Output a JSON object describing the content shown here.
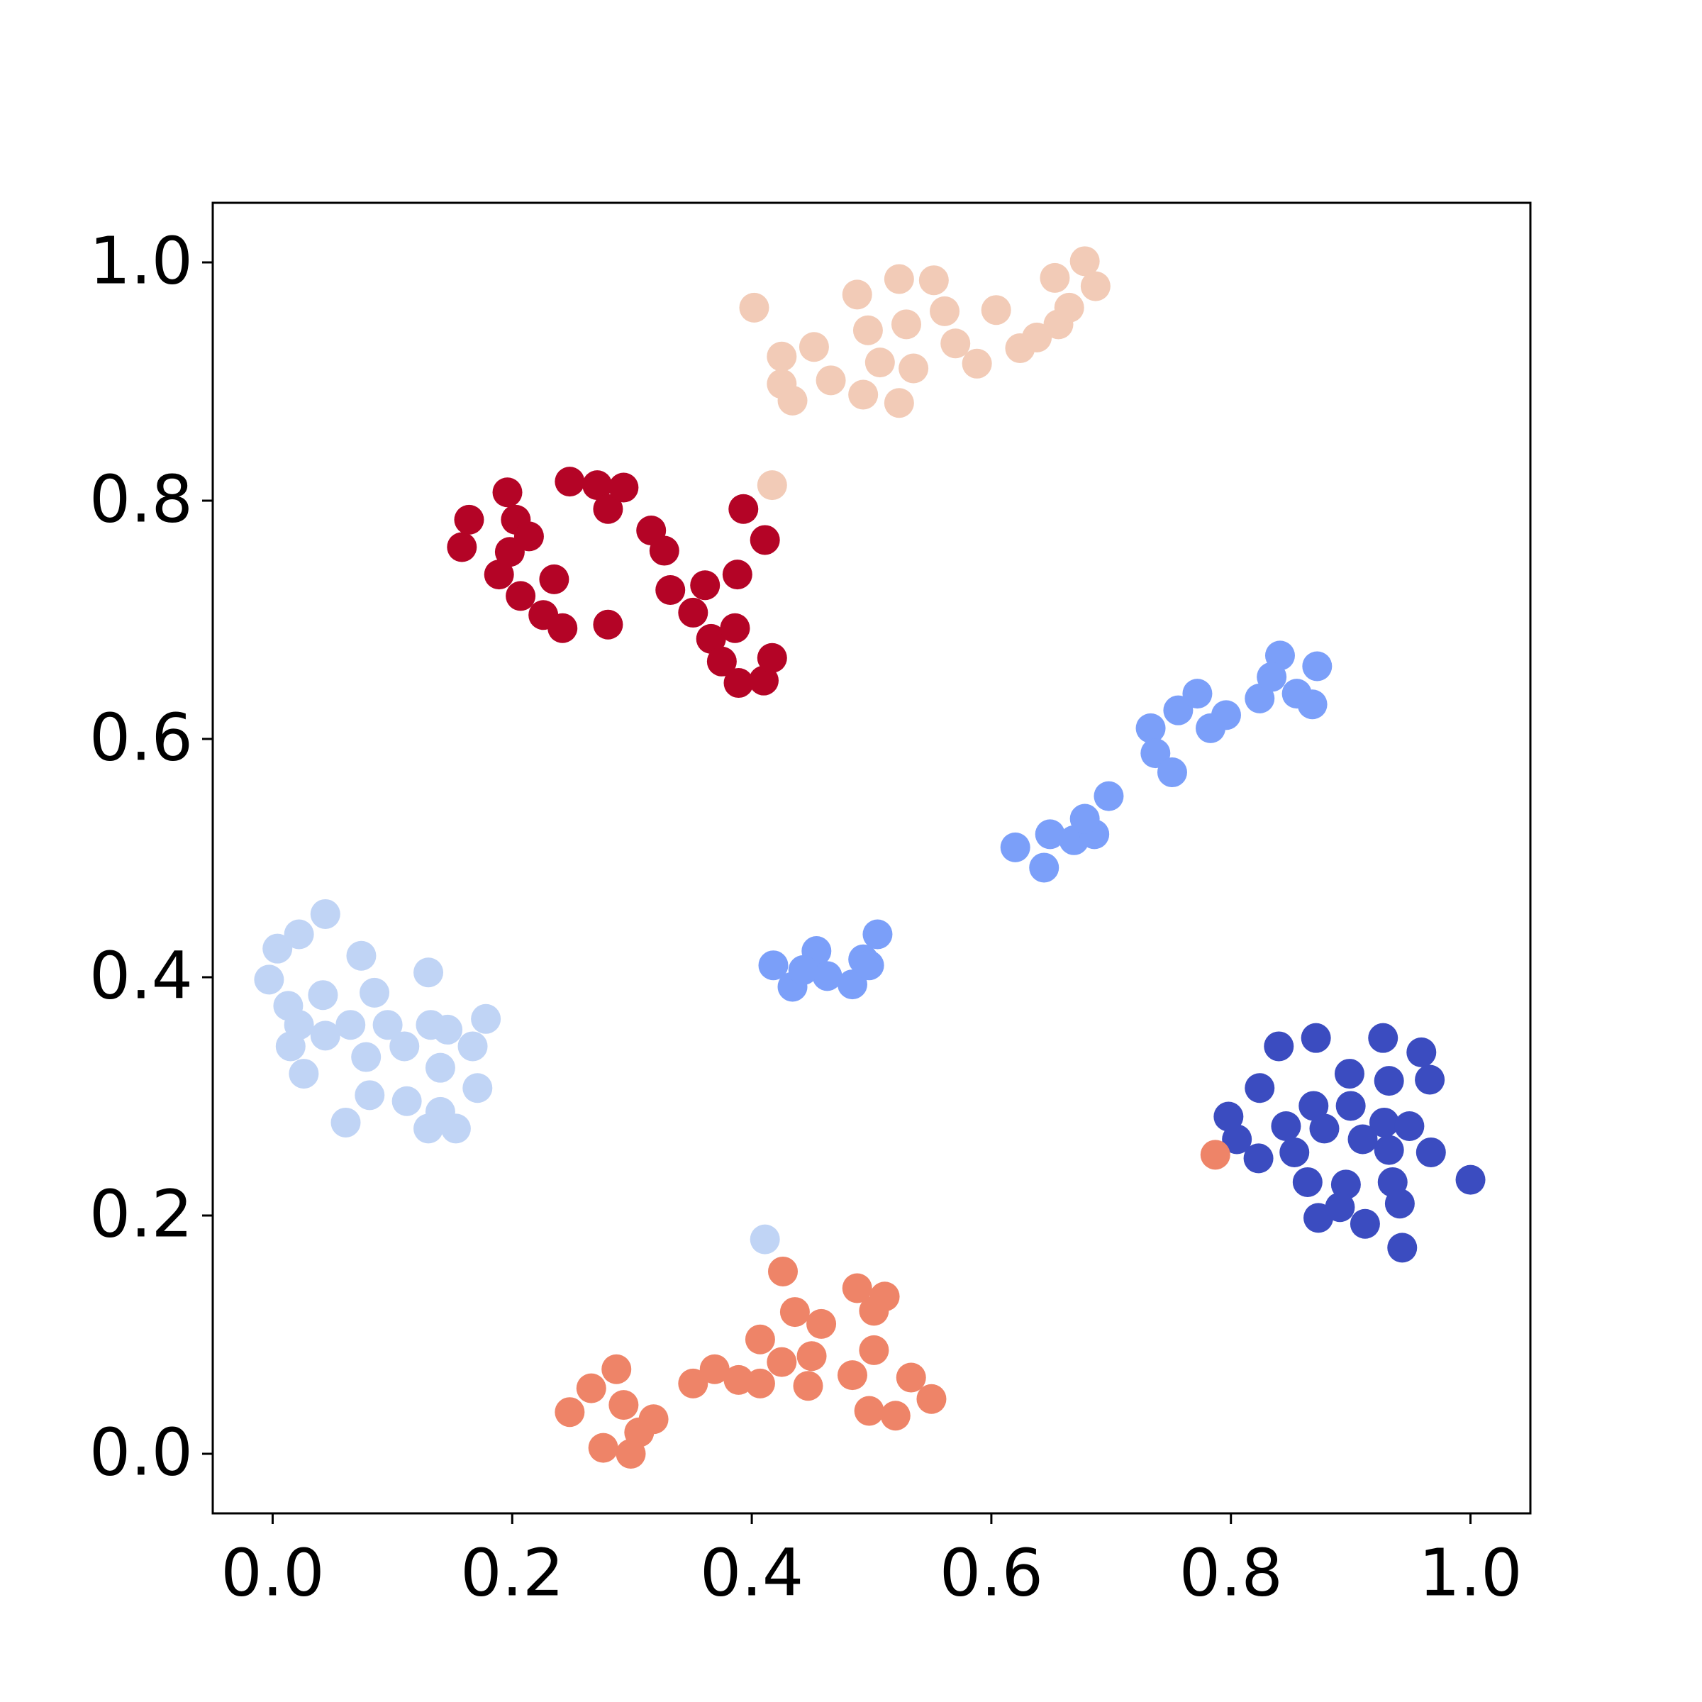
{
  "chart_data": {
    "type": "scatter",
    "xlim": [
      -0.05,
      1.05
    ],
    "ylim": [
      -0.05,
      1.05
    ],
    "xticks": [
      {
        "value": 0,
        "label": "0.0"
      },
      0.2,
      0.4,
      0.6,
      0.8,
      {
        "value": 1,
        "label": "1.0"
      }
    ],
    "yticks": [
      {
        "value": 0,
        "label": "0.0"
      },
      0.2,
      0.4,
      0.6,
      0.8,
      {
        "value": 1,
        "label": "1.0"
      }
    ],
    "grid": false,
    "series": [
      {
        "color": "#3b4cc0",
        "x": [
          0.871,
          0.927,
          0.84,
          0.959,
          0.899,
          0.824,
          0.966,
          0.932,
          0.869,
          0.9,
          0.798,
          0.846,
          0.878,
          0.928,
          0.949,
          0.91,
          0.805,
          0.853,
          0.932,
          0.967,
          0.823,
          0.864,
          0.896,
          0.935,
          1.0,
          0.891,
          0.941,
          0.873,
          0.912,
          0.943
        ],
        "y": [
          0.349,
          0.349,
          0.342,
          0.337,
          0.319,
          0.307,
          0.314,
          0.313,
          0.292,
          0.292,
          0.283,
          0.275,
          0.273,
          0.278,
          0.275,
          0.264,
          0.264,
          0.253,
          0.255,
          0.253,
          0.248,
          0.228,
          0.226,
          0.228,
          0.23,
          0.207,
          0.21,
          0.198,
          0.193,
          0.173
        ]
      },
      {
        "color": "#7b9ff9",
        "x": [
          0.62,
          0.644,
          0.649,
          0.669,
          0.686,
          0.678,
          0.698,
          0.733,
          0.737,
          0.751,
          0.756,
          0.772,
          0.783,
          0.796,
          0.824,
          0.841,
          0.855,
          0.868,
          0.872,
          0.834,
          0.418,
          0.434,
          0.454,
          0.463,
          0.484,
          0.493,
          0.505,
          0.498,
          0.443
        ],
        "y": [
          0.509,
          0.492,
          0.52,
          0.515,
          0.52,
          0.533,
          0.552,
          0.609,
          0.588,
          0.572,
          0.624,
          0.638,
          0.609,
          0.62,
          0.634,
          0.67,
          0.638,
          0.629,
          0.661,
          0.652,
          0.41,
          0.392,
          0.422,
          0.401,
          0.394,
          0.415,
          0.436,
          0.41,
          0.406
        ]
      },
      {
        "color": "#c0d4f5",
        "x": [
          0.004,
          -0.003,
          0.022,
          0.044,
          0.074,
          0.013,
          0.042,
          0.022,
          0.015,
          0.044,
          0.065,
          0.085,
          0.096,
          0.078,
          0.11,
          0.13,
          0.132,
          0.146,
          0.167,
          0.178,
          0.14,
          0.026,
          0.112,
          0.081,
          0.061,
          0.171,
          0.14,
          0.13,
          0.153,
          0.411
        ],
        "y": [
          0.424,
          0.398,
          0.436,
          0.453,
          0.418,
          0.376,
          0.385,
          0.36,
          0.342,
          0.351,
          0.36,
          0.387,
          0.36,
          0.333,
          0.342,
          0.404,
          0.36,
          0.356,
          0.342,
          0.365,
          0.324,
          0.319,
          0.296,
          0.301,
          0.278,
          0.307,
          0.287,
          0.273,
          0.273,
          0.18
        ]
      },
      {
        "color": "#f2cbb7",
        "x": [
          0.402,
          0.425,
          0.452,
          0.434,
          0.425,
          0.466,
          0.488,
          0.497,
          0.493,
          0.507,
          0.523,
          0.529,
          0.523,
          0.535,
          0.552,
          0.561,
          0.57,
          0.588,
          0.604,
          0.624,
          0.638,
          0.656,
          0.653,
          0.678,
          0.687,
          0.665,
          0.417
        ],
        "y": [
          0.962,
          0.921,
          0.929,
          0.884,
          0.898,
          0.901,
          0.973,
          0.943,
          0.889,
          0.916,
          0.986,
          0.948,
          0.882,
          0.911,
          0.985,
          0.959,
          0.932,
          0.915,
          0.96,
          0.928,
          0.937,
          0.948,
          0.987,
          1.001,
          0.98,
          0.962,
          0.813
        ]
      },
      {
        "color": "#ee8468",
        "x": [
          0.248,
          0.266,
          0.287,
          0.276,
          0.299,
          0.293,
          0.318,
          0.306,
          0.351,
          0.369,
          0.389,
          0.407,
          0.407,
          0.426,
          0.436,
          0.425,
          0.447,
          0.458,
          0.45,
          0.488,
          0.511,
          0.502,
          0.484,
          0.502,
          0.498,
          0.52,
          0.533,
          0.55,
          0.787
        ],
        "y": [
          0.035,
          0.055,
          0.071,
          0.005,
          0.0,
          0.041,
          0.029,
          0.018,
          0.059,
          0.071,
          0.062,
          0.059,
          0.096,
          0.153,
          0.119,
          0.077,
          0.057,
          0.109,
          0.082,
          0.139,
          0.132,
          0.12,
          0.066,
          0.087,
          0.036,
          0.032,
          0.064,
          0.046,
          0.251
        ]
      },
      {
        "color": "#b40426",
        "x": [
          0.158,
          0.164,
          0.196,
          0.203,
          0.214,
          0.198,
          0.189,
          0.207,
          0.235,
          0.226,
          0.242,
          0.248,
          0.271,
          0.28,
          0.293,
          0.28,
          0.316,
          0.327,
          0.332,
          0.351,
          0.361,
          0.366,
          0.388,
          0.393,
          0.411,
          0.386,
          0.375,
          0.389,
          0.41,
          0.417
        ],
        "y": [
          0.761,
          0.784,
          0.807,
          0.784,
          0.77,
          0.757,
          0.738,
          0.72,
          0.734,
          0.704,
          0.693,
          0.816,
          0.813,
          0.793,
          0.811,
          0.696,
          0.775,
          0.758,
          0.725,
          0.706,
          0.729,
          0.684,
          0.738,
          0.793,
          0.767,
          0.693,
          0.665,
          0.647,
          0.649,
          0.668
        ]
      }
    ]
  }
}
